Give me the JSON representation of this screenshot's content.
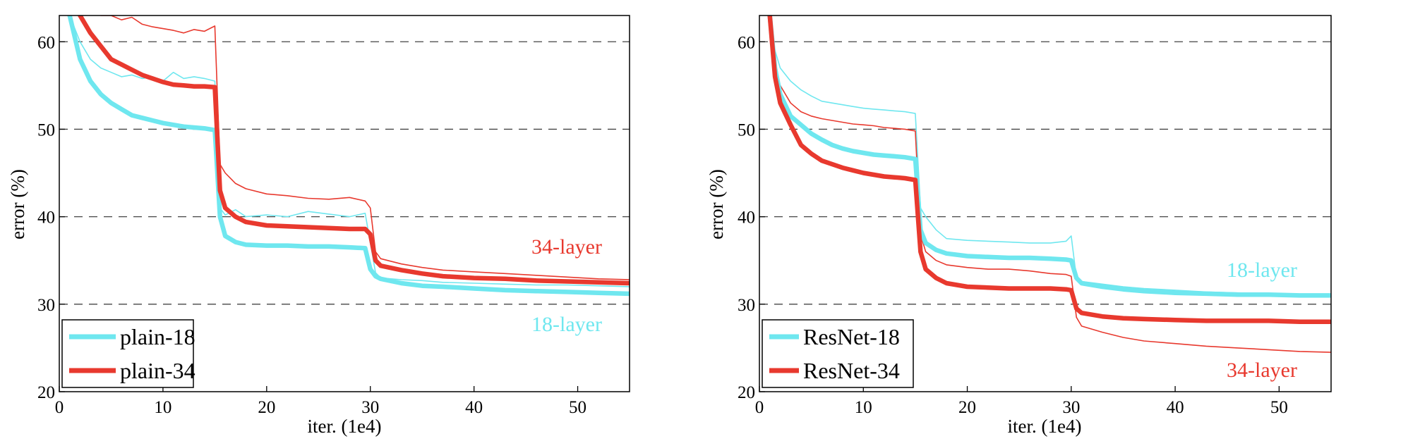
{
  "chart_data": [
    {
      "type": "line",
      "title": "",
      "xlabel": "iter. (1e4)",
      "ylabel": "error (%)",
      "xlim": [
        0,
        55
      ],
      "ylim": [
        20,
        63
      ],
      "xticks": [
        "0",
        "10",
        "20",
        "30",
        "40",
        "50"
      ],
      "yticks": [
        "20",
        "30",
        "40",
        "50",
        "60"
      ],
      "grid": "horizontal-dashed",
      "legend_position": "bottom-left",
      "series": [
        {
          "name": "plain-18",
          "color": "#6fe7ef",
          "style": "thick",
          "x": [
            1,
            2,
            3,
            4,
            5,
            6,
            7,
            8,
            9,
            10,
            11,
            12,
            13,
            14,
            15,
            15.5,
            16,
            17,
            18,
            20,
            22,
            24,
            26,
            28,
            29.5,
            30,
            30.5,
            31,
            33,
            35,
            37,
            40,
            43,
            46,
            49,
            52,
            55
          ],
          "y": [
            63,
            58,
            55.5,
            54,
            53,
            52.3,
            51.6,
            51.3,
            51,
            50.7,
            50.5,
            50.3,
            50.2,
            50.1,
            49.9,
            40,
            37.8,
            37.1,
            36.8,
            36.7,
            36.7,
            36.6,
            36.6,
            36.5,
            36.4,
            34,
            33.2,
            32.9,
            32.4,
            32.1,
            32,
            31.8,
            31.6,
            31.5,
            31.4,
            31.3,
            31.2
          ]
        },
        {
          "name": "plain-34",
          "color": "#e8392e",
          "style": "thick",
          "x": [
            2,
            3,
            4,
            5,
            6,
            7,
            8,
            9,
            10,
            11,
            12,
            13,
            14,
            15,
            15.5,
            16,
            17,
            18,
            20,
            22,
            24,
            26,
            28,
            29.5,
            30,
            30.5,
            31,
            33,
            35,
            37,
            40,
            43,
            46,
            49,
            52,
            55
          ],
          "y": [
            63,
            61,
            59.5,
            58,
            57.4,
            56.8,
            56.2,
            55.8,
            55.4,
            55.1,
            55,
            54.9,
            54.9,
            54.8,
            43,
            41,
            40,
            39.4,
            39,
            38.9,
            38.8,
            38.7,
            38.6,
            38.6,
            38,
            35,
            34.4,
            33.9,
            33.5,
            33.2,
            33,
            32.9,
            32.7,
            32.6,
            32.5,
            32.4
          ]
        },
        {
          "name": "",
          "color": "#6fe7ef",
          "style": "thin",
          "x": [
            1,
            2,
            3,
            4,
            5,
            6,
            7,
            8,
            9,
            10,
            11,
            12,
            13,
            14,
            15,
            15.5,
            16,
            17,
            18,
            20,
            22,
            24,
            26,
            28,
            29.5,
            30,
            30.5,
            31,
            33,
            35,
            37,
            40,
            43,
            46,
            49,
            52,
            55
          ],
          "y": [
            63,
            60,
            58,
            57,
            56.5,
            56,
            56.2,
            55.8,
            56,
            55.5,
            56.5,
            55.8,
            56,
            55.8,
            55.5,
            41,
            40.2,
            40.8,
            40,
            40.2,
            40,
            40.6,
            40.3,
            40,
            40.4,
            37,
            33.6,
            33,
            32.8,
            32.7,
            32.5,
            32.4,
            32.3,
            32.2,
            32.2,
            32.1,
            32
          ]
        },
        {
          "name": "",
          "color": "#e8392e",
          "style": "thin",
          "x": [
            4,
            5,
            6,
            7,
            8,
            9,
            10,
            11,
            12,
            13,
            14,
            15,
            15.5,
            16,
            17,
            18,
            20,
            22,
            24,
            26,
            28,
            29.5,
            30,
            30.5,
            31,
            33,
            35,
            37,
            40,
            43,
            46,
            49,
            52,
            55
          ],
          "y": [
            63,
            63,
            62.5,
            62.8,
            62,
            61.7,
            61.5,
            61.3,
            61,
            61.4,
            61.2,
            61.8,
            46,
            45,
            43.8,
            43.2,
            42.6,
            42.4,
            42.1,
            42,
            42.2,
            41.8,
            41,
            36,
            35.2,
            34.6,
            34.2,
            33.9,
            33.7,
            33.5,
            33.3,
            33.1,
            32.9,
            32.8
          ]
        }
      ],
      "annotations": [
        {
          "text": "34-layer",
          "color": "#e8392e"
        },
        {
          "text": "18-layer",
          "color": "#6fe7ef"
        }
      ]
    },
    {
      "type": "line",
      "title": "",
      "xlabel": "iter. (1e4)",
      "ylabel": "error (%)",
      "xlim": [
        0,
        55
      ],
      "ylim": [
        20,
        63
      ],
      "xticks": [
        "0",
        "10",
        "20",
        "30",
        "40",
        "50"
      ],
      "yticks": [
        "20",
        "30",
        "40",
        "50",
        "60"
      ],
      "grid": "horizontal-dashed",
      "legend_position": "bottom-left",
      "series": [
        {
          "name": "ResNet-18",
          "color": "#6fe7ef",
          "style": "thick",
          "x": [
            1,
            1.5,
            2,
            3,
            4,
            5,
            6,
            7,
            8,
            9,
            10,
            11,
            12,
            13,
            14,
            15,
            15.5,
            16,
            17,
            18,
            20,
            22,
            24,
            26,
            28,
            29.5,
            30,
            30.5,
            31,
            33,
            35,
            37,
            40,
            43,
            46,
            49,
            52,
            55
          ],
          "y": [
            63,
            57,
            54,
            51.5,
            50.5,
            49.5,
            48.8,
            48.2,
            47.8,
            47.5,
            47.3,
            47.1,
            47,
            46.9,
            46.8,
            46.6,
            38.5,
            37,
            36.2,
            35.8,
            35.5,
            35.4,
            35.3,
            35.3,
            35.2,
            35.1,
            35,
            33,
            32.4,
            32,
            31.7,
            31.5,
            31.3,
            31.2,
            31.1,
            31.1,
            31,
            31
          ]
        },
        {
          "name": "ResNet-34",
          "color": "#e8392e",
          "style": "thick",
          "x": [
            1,
            1.5,
            2,
            3,
            4,
            5,
            6,
            7,
            8,
            9,
            10,
            11,
            12,
            13,
            14,
            15,
            15.5,
            16,
            17,
            18,
            20,
            22,
            24,
            26,
            28,
            29.5,
            30,
            30.5,
            31,
            33,
            35,
            37,
            40,
            43,
            46,
            49,
            52,
            55
          ],
          "y": [
            63,
            56,
            53,
            50.5,
            48.2,
            47.2,
            46.4,
            46,
            45.6,
            45.3,
            45,
            44.8,
            44.6,
            44.5,
            44.4,
            44.2,
            36,
            34,
            33,
            32.4,
            32,
            31.9,
            31.8,
            31.8,
            31.8,
            31.7,
            31.6,
            29.5,
            29,
            28.6,
            28.4,
            28.3,
            28.2,
            28.1,
            28.1,
            28.1,
            28,
            28
          ]
        },
        {
          "name": "",
          "color": "#6fe7ef",
          "style": "thin",
          "x": [
            1,
            1.5,
            2,
            3,
            4,
            5,
            6,
            7,
            8,
            9,
            10,
            11,
            12,
            13,
            14,
            15,
            15.5,
            16,
            17,
            18,
            20,
            22,
            24,
            26,
            28,
            29.5,
            30,
            30.5,
            31,
            33,
            35,
            37,
            40,
            43,
            46,
            49,
            52,
            55
          ],
          "y": [
            63,
            59,
            57,
            55.5,
            54.5,
            53.8,
            53.2,
            53,
            52.8,
            52.6,
            52.4,
            52.3,
            52.2,
            52.1,
            52,
            51.8,
            41,
            40,
            38.5,
            37.5,
            37.3,
            37.2,
            37.1,
            37,
            37,
            37.2,
            37.8,
            33,
            32.6,
            32.3,
            32,
            31.8,
            31.6,
            31.4,
            31.3,
            31.2,
            31.1,
            31
          ]
        },
        {
          "name": "",
          "color": "#e8392e",
          "style": "thin",
          "x": [
            1,
            1.5,
            2,
            3,
            4,
            5,
            6,
            7,
            8,
            9,
            10,
            11,
            12,
            13,
            14,
            15,
            15.5,
            16,
            17,
            18,
            20,
            22,
            24,
            26,
            28,
            29.5,
            30,
            30.5,
            31,
            33,
            35,
            37,
            40,
            43,
            46,
            49,
            52,
            55
          ],
          "y": [
            63,
            57,
            55,
            53,
            52,
            51.5,
            51.2,
            51,
            50.8,
            50.6,
            50.5,
            50.4,
            50.2,
            50.1,
            50,
            49.8,
            38,
            36,
            35,
            34.5,
            34.2,
            34,
            34,
            33.8,
            33.5,
            33.4,
            33.2,
            28.5,
            27.5,
            26.8,
            26.2,
            25.8,
            25.5,
            25.2,
            25,
            24.8,
            24.6,
            24.5
          ]
        }
      ],
      "annotations": [
        {
          "text": "18-layer",
          "color": "#6fe7ef"
        },
        {
          "text": "34-layer",
          "color": "#e8392e"
        }
      ]
    }
  ]
}
